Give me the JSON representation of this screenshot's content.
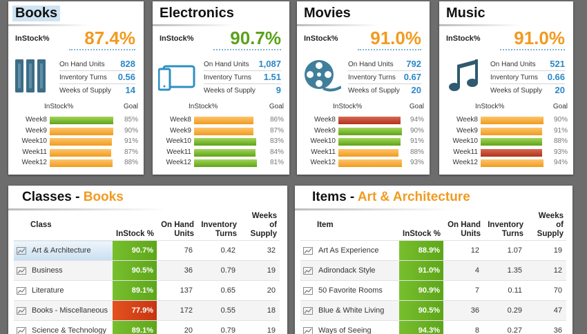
{
  "categories": [
    {
      "id": "books",
      "title": "Books",
      "instock_label": "InStock%",
      "instock_value": "87.4%",
      "instock_color": "#f29a1f",
      "icon": "books-icon",
      "metrics": [
        {
          "label": "On Hand Units",
          "value": "828"
        },
        {
          "label": "Inventory Turns",
          "value": "0.56"
        },
        {
          "label": "Weeks of Supply",
          "value": "14"
        }
      ],
      "col_instock": "InStock%",
      "col_goal": "Goal",
      "weeks": [
        {
          "label": "Week8",
          "pct": 0.98,
          "color": "green",
          "goal": "85%"
        },
        {
          "label": "Week9",
          "pct": 0.98,
          "color": "orange",
          "goal": "90%"
        },
        {
          "label": "Week10",
          "pct": 0.96,
          "color": "orange",
          "goal": "91%"
        },
        {
          "label": "Week11",
          "pct": 0.95,
          "color": "orange",
          "goal": "87%"
        },
        {
          "label": "Week12",
          "pct": 0.97,
          "color": "orange",
          "goal": "88%"
        }
      ]
    },
    {
      "id": "electronics",
      "title": "Electronics",
      "instock_label": "InStock%",
      "instock_value": "90.7%",
      "instock_color": "#5aa21a",
      "icon": "tablet-phone-icon",
      "metrics": [
        {
          "label": "On Hand Units",
          "value": "1,087"
        },
        {
          "label": "Inventory Turns",
          "value": "1.51"
        },
        {
          "label": "Weeks of Supply",
          "value": "9"
        }
      ],
      "col_instock": "InStock%",
      "col_goal": "Goal",
      "weeks": [
        {
          "label": "Week8",
          "pct": 0.92,
          "color": "orange",
          "goal": "86%"
        },
        {
          "label": "Week9",
          "pct": 0.92,
          "color": "orange",
          "goal": "87%"
        },
        {
          "label": "Week10",
          "pct": 0.96,
          "color": "green",
          "goal": "83%"
        },
        {
          "label": "Week11",
          "pct": 0.95,
          "color": "green",
          "goal": "84%"
        },
        {
          "label": "Week12",
          "pct": 0.97,
          "color": "green",
          "goal": "81%"
        }
      ]
    },
    {
      "id": "movies",
      "title": "Movies",
      "instock_label": "InStock%",
      "instock_value": "91.0%",
      "instock_color": "#f29a1f",
      "icon": "film-reel-icon",
      "metrics": [
        {
          "label": "On Hand Units",
          "value": "792"
        },
        {
          "label": "Inventory Turns",
          "value": "0.67"
        },
        {
          "label": "Weeks of Supply",
          "value": "20"
        }
      ],
      "col_instock": "InStock%",
      "col_goal": "Goal",
      "weeks": [
        {
          "label": "Week8",
          "pct": 0.96,
          "color": "red",
          "goal": "94%"
        },
        {
          "label": "Week9",
          "pct": 0.98,
          "color": "green",
          "goal": "90%"
        },
        {
          "label": "Week10",
          "pct": 0.96,
          "color": "green",
          "goal": "91%"
        },
        {
          "label": "Week11",
          "pct": 0.93,
          "color": "orange",
          "goal": "88%"
        },
        {
          "label": "Week12",
          "pct": 0.98,
          "color": "orange",
          "goal": "93%"
        }
      ]
    },
    {
      "id": "music",
      "title": "Music",
      "instock_label": "InStock%",
      "instock_value": "91.0%",
      "instock_color": "#f29a1f",
      "icon": "music-note-icon",
      "metrics": [
        {
          "label": "On Hand Units",
          "value": "521"
        },
        {
          "label": "Inventory Turns",
          "value": "0.66"
        },
        {
          "label": "Weeks of Supply",
          "value": "20"
        }
      ],
      "col_instock": "InStock%",
      "col_goal": "Goal",
      "weeks": [
        {
          "label": "Week8",
          "pct": 0.97,
          "color": "orange",
          "goal": "90%"
        },
        {
          "label": "Week9",
          "pct": 0.95,
          "color": "orange",
          "goal": "91%"
        },
        {
          "label": "Week10",
          "pct": 0.95,
          "color": "green",
          "goal": "88%"
        },
        {
          "label": "Week11",
          "pct": 0.95,
          "color": "red",
          "goal": "93%"
        },
        {
          "label": "Week12",
          "pct": 0.97,
          "color": "orange",
          "goal": "94%"
        }
      ]
    }
  ],
  "classes": {
    "title_prefix": "Classes - ",
    "title_accent": "Books",
    "columns": [
      "Class",
      "InStock %",
      "On Hand Units",
      "Inventory Turns",
      "Weeks of Supply"
    ],
    "rows": [
      {
        "name": "Art & Architecture",
        "instock": "90.7%",
        "status": "green",
        "on_hand": "76",
        "turns": "0.42",
        "wos": "32"
      },
      {
        "name": "Business",
        "instock": "90.5%",
        "status": "green",
        "on_hand": "36",
        "turns": "0.79",
        "wos": "19"
      },
      {
        "name": "Literature",
        "instock": "89.1%",
        "status": "green",
        "on_hand": "137",
        "turns": "0.65",
        "wos": "20"
      },
      {
        "name": "Books - Miscellaneous",
        "instock": "77.9%",
        "status": "red",
        "on_hand": "172",
        "turns": "0.55",
        "wos": "18"
      },
      {
        "name": "Science & Technology",
        "instock": "89.1%",
        "status": "green",
        "on_hand": "20",
        "turns": "0.79",
        "wos": "19"
      }
    ]
  },
  "items": {
    "title_prefix": "Items - ",
    "title_accent": "Art & Architecture",
    "columns": [
      "Item",
      "InStock %",
      "On Hand Units",
      "Inventory Turns",
      "Weeks of Supply"
    ],
    "rows": [
      {
        "name": "Art As Experience",
        "instock": "88.9%",
        "status": "green",
        "on_hand": "12",
        "turns": "1.07",
        "wos": "19"
      },
      {
        "name": "Adirondack Style",
        "instock": "91.0%",
        "status": "green",
        "on_hand": "4",
        "turns": "1.35",
        "wos": "12"
      },
      {
        "name": "50 Favorite Rooms",
        "instock": "90.9%",
        "status": "green",
        "on_hand": "7",
        "turns": "0.11",
        "wos": "70"
      },
      {
        "name": "Blue & White Living",
        "instock": "90.5%",
        "status": "green",
        "on_hand": "36",
        "turns": "0.29",
        "wos": "47"
      },
      {
        "name": "Ways of Seeing",
        "instock": "94.3%",
        "status": "green",
        "on_hand": "8",
        "turns": "0.27",
        "wos": "36"
      }
    ]
  }
}
